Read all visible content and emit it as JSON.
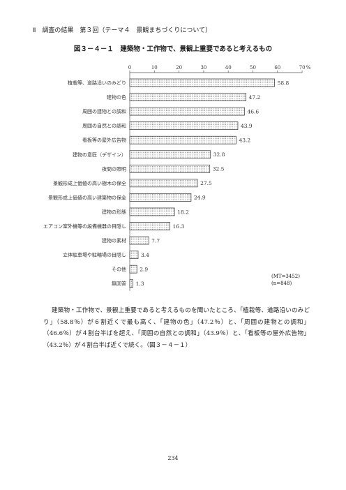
{
  "header": {
    "section": "Ⅱ　調査の結果　第３回（テーマ４　景観まちづくりについて）"
  },
  "figure": {
    "title": "図３－４－１　建築物・工作物で、景観上重要であると考えるもの"
  },
  "chart_data": {
    "type": "bar",
    "orientation": "horizontal",
    "categories": [
      "植栽等、道路沿いのみどり",
      "建物の色",
      "周囲の建物との調和",
      "周囲の自然との調和",
      "看板等の屋外広告物",
      "建物の意匠（デザイン）",
      "夜間の照明",
      "景観形成上価値の高い樹木の保全",
      "景観形成上価値の高い建築物の保全",
      "建物の形態",
      "エアコン室外機等の設備機器の目隠し",
      "建物の素材",
      "立体駐車場や駐輪場の目隠し",
      "その他",
      "無回答"
    ],
    "values": [
      58.8,
      47.2,
      46.6,
      43.9,
      43.2,
      32.8,
      32.5,
      27.5,
      24.9,
      18.2,
      16.3,
      7.7,
      3.4,
      2.9,
      1.3
    ],
    "value_labels": [
      "58.8",
      "47.2",
      "46.6",
      "43.9",
      "43.2",
      "32.8",
      "32.5",
      "27.5",
      "24.9",
      "18.2",
      "16.3",
      "7.7",
      "3.4",
      "2.9",
      "1.3"
    ],
    "xticks": [
      "0",
      "10",
      "20",
      "30",
      "40",
      "50",
      "60",
      "70"
    ],
    "unit": "%",
    "xlim": [
      0,
      70
    ],
    "grid": false,
    "bar_fill": "dotted-hatch"
  },
  "note": {
    "mt": "(MT=3452)",
    "n": "(n=848)"
  },
  "body": "建築物・工作物で、景観上重要であると考えるものを聞いたところ、「植栽等、道路沿いのみどり」（58.8％）が６割近くで最も高く、「建物の色」（47.2％）と、「周囲の建物との調和」（46.6％）が４割台半ばを超え、「周囲の自然との調和」（43.9％）と、「看板等の屋外広告物」（43.2％）が４割台半ば近くで続く。（図３－４－１）",
  "footer": {
    "page": "234"
  }
}
